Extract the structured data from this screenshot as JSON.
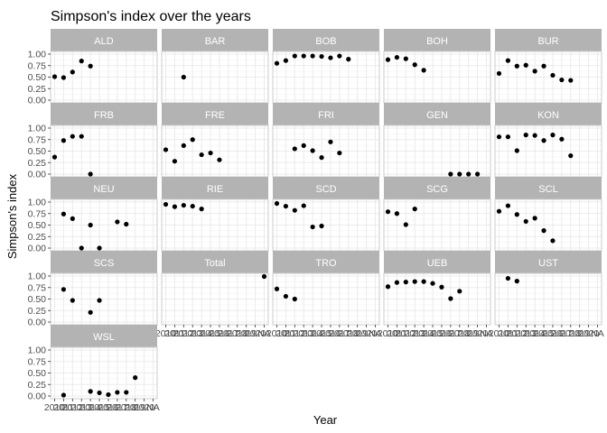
{
  "chart_data": {
    "type": "scatter",
    "title": "Simpson's index over the years",
    "xlabel": "Year",
    "ylabel": "Simpson's index",
    "ylim": [
      0,
      1
    ],
    "y_ticks": [
      "0.00",
      "0.25",
      "0.50",
      "0.75",
      "1.00"
    ],
    "x_categories": [
      "2010",
      "2011",
      "2012",
      "2013",
      "2014",
      "2015",
      "2016",
      "2017",
      "2018",
      "2019",
      "2020",
      "NA"
    ],
    "grid": true,
    "point_color": "#000000",
    "strip_color": "#b3b3b3",
    "panel_border_color": "#cccccc",
    "grid_color": "#ebebeb",
    "facets": [
      {
        "name": "ALD",
        "x": [
          "2010",
          "2011",
          "2012",
          "2013",
          "2014"
        ],
        "y": [
          0.51,
          0.49,
          0.61,
          0.85,
          0.74
        ]
      },
      {
        "name": "BAR",
        "x": [
          "2012"
        ],
        "y": [
          0.5
        ]
      },
      {
        "name": "BOB",
        "x": [
          "2010",
          "2011",
          "2012",
          "2013",
          "2014",
          "2015",
          "2016",
          "2017",
          "2018"
        ],
        "y": [
          0.8,
          0.86,
          0.96,
          0.96,
          0.96,
          0.95,
          0.92,
          0.96,
          0.89
        ]
      },
      {
        "name": "BOH",
        "x": [
          "2010",
          "2011",
          "2012",
          "2013",
          "2014"
        ],
        "y": [
          0.88,
          0.93,
          0.9,
          0.77,
          0.65
        ]
      },
      {
        "name": "BUR",
        "x": [
          "2010",
          "2011",
          "2012",
          "2013",
          "2014",
          "2015",
          "2016",
          "2017",
          "2018"
        ],
        "y": [
          0.58,
          0.86,
          0.74,
          0.76,
          0.63,
          0.74,
          0.54,
          0.44,
          0.43
        ]
      },
      {
        "name": "FRB",
        "x": [
          "2010",
          "2011",
          "2012",
          "2013",
          "2014"
        ],
        "y": [
          0.37,
          0.73,
          0.82,
          0.82,
          0.0
        ]
      },
      {
        "name": "FRE",
        "x": [
          "2010",
          "2011",
          "2012",
          "2013",
          "2014",
          "2015",
          "2016"
        ],
        "y": [
          0.53,
          0.28,
          0.62,
          0.75,
          0.42,
          0.46,
          0.31
        ]
      },
      {
        "name": "FRI",
        "x": [
          "2012",
          "2013",
          "2014",
          "2015",
          "2016",
          "2017"
        ],
        "y": [
          0.55,
          0.62,
          0.51,
          0.36,
          0.7,
          0.46
        ]
      },
      {
        "name": "GEN",
        "x": [
          "2017",
          "2018",
          "2019",
          "2020"
        ],
        "y": [
          0.0,
          0.0,
          0.0,
          0.0
        ]
      },
      {
        "name": "KON",
        "x": [
          "2010",
          "2011",
          "2012",
          "2013",
          "2014",
          "2015",
          "2016",
          "2017",
          "2018"
        ],
        "y": [
          0.81,
          0.81,
          0.51,
          0.85,
          0.84,
          0.73,
          0.85,
          0.76,
          0.4
        ]
      },
      {
        "name": "NEU",
        "x": [
          "2011",
          "2012",
          "2013",
          "2014",
          "2015",
          "2017",
          "2018"
        ],
        "y": [
          0.74,
          0.64,
          0.0,
          0.5,
          0.0,
          0.57,
          0.52
        ]
      },
      {
        "name": "RIE",
        "x": [
          "2010",
          "2011",
          "2012",
          "2013",
          "2014"
        ],
        "y": [
          0.95,
          0.9,
          0.93,
          0.91,
          0.85
        ]
      },
      {
        "name": "SCD",
        "x": [
          "2010",
          "2011",
          "2012",
          "2013",
          "2014",
          "2015"
        ],
        "y": [
          0.97,
          0.91,
          0.82,
          0.92,
          0.46,
          0.48
        ]
      },
      {
        "name": "SCG",
        "x": [
          "2010",
          "2011",
          "2012",
          "2013"
        ],
        "y": [
          0.79,
          0.75,
          0.51,
          0.85
        ]
      },
      {
        "name": "SCL",
        "x": [
          "2010",
          "2011",
          "2012",
          "2013",
          "2014",
          "2015",
          "2016"
        ],
        "y": [
          0.8,
          0.92,
          0.73,
          0.58,
          0.65,
          0.38,
          0.16
        ]
      },
      {
        "name": "SCS",
        "x": [
          "2011",
          "2012",
          "2014",
          "2015"
        ],
        "y": [
          0.71,
          0.47,
          0.21,
          0.47
        ]
      },
      {
        "name": "Total",
        "x": [
          "NA"
        ],
        "y": [
          0.99
        ]
      },
      {
        "name": "TRO",
        "x": [
          "2010",
          "2011",
          "2012"
        ],
        "y": [
          0.72,
          0.56,
          0.5
        ]
      },
      {
        "name": "UEB",
        "x": [
          "2010",
          "2011",
          "2012",
          "2013",
          "2014",
          "2015",
          "2016",
          "2017",
          "2018"
        ],
        "y": [
          0.77,
          0.86,
          0.87,
          0.88,
          0.88,
          0.84,
          0.76,
          0.51,
          0.67
        ]
      },
      {
        "name": "UST",
        "x": [
          "2011",
          "2012"
        ],
        "y": [
          0.95,
          0.89
        ]
      },
      {
        "name": "WSL",
        "x": [
          "2011",
          "2014",
          "2015",
          "2016",
          "2017",
          "2018",
          "2019"
        ],
        "y": [
          0.02,
          0.1,
          0.07,
          0.03,
          0.08,
          0.08,
          0.4
        ]
      }
    ]
  }
}
